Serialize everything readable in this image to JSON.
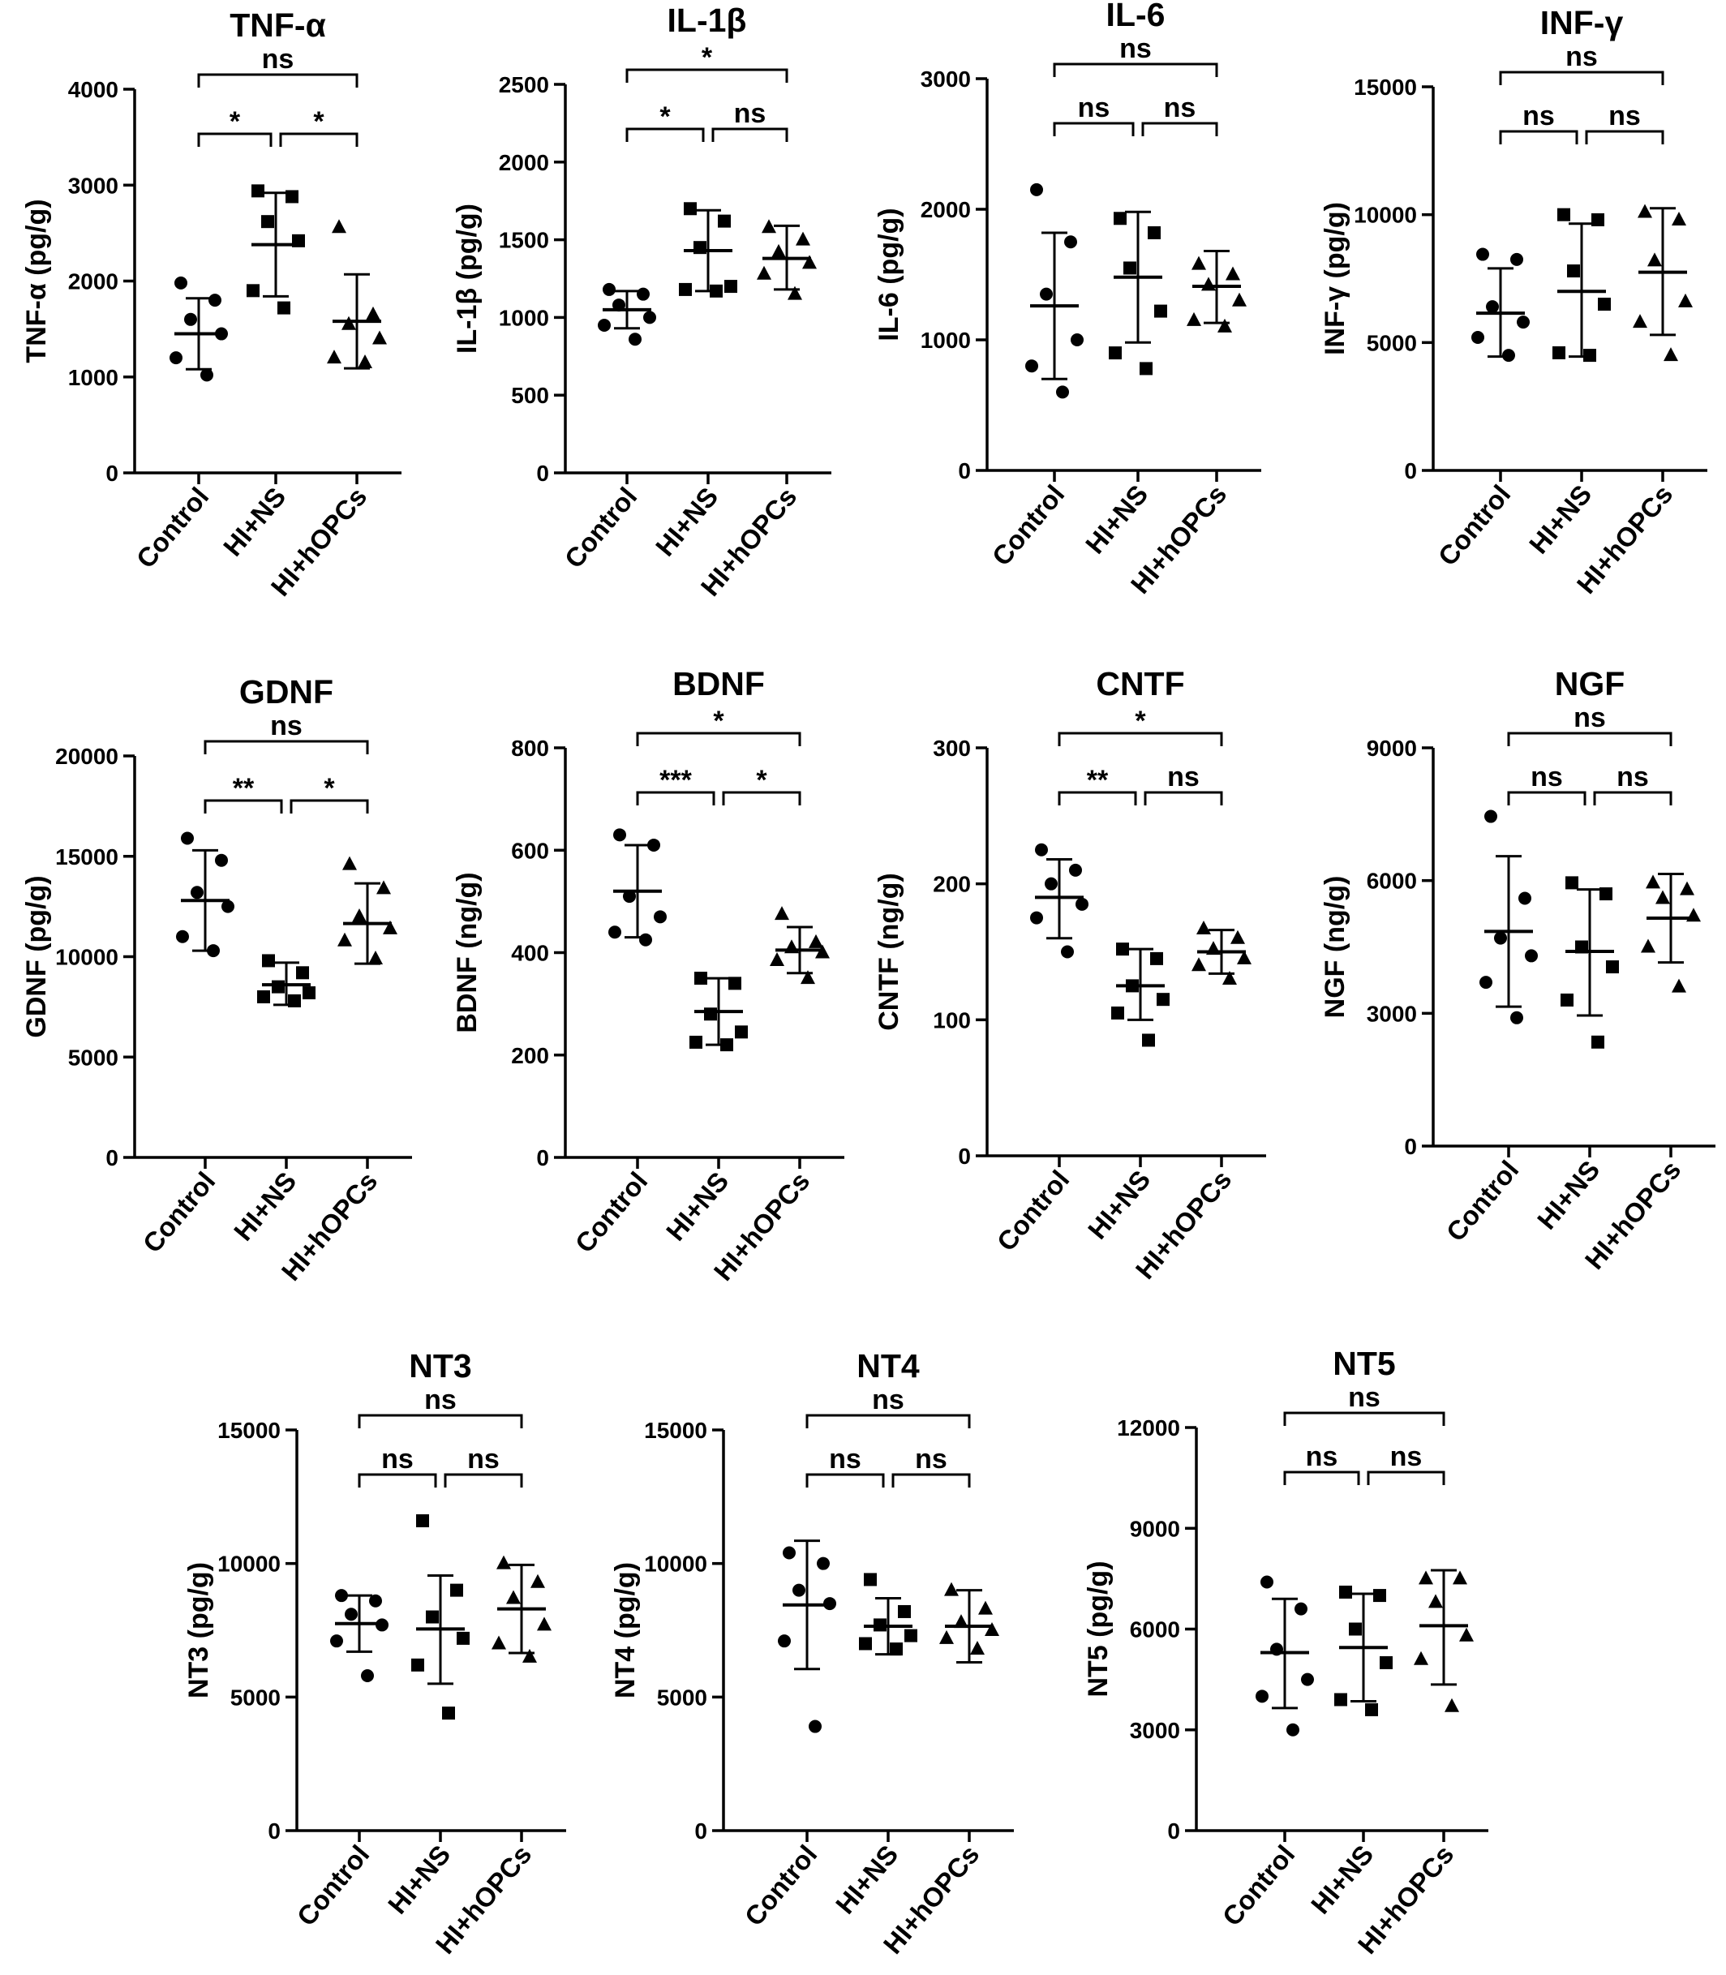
{
  "chart_data": [
    {
      "type": "scatter",
      "title": "TNF-α",
      "ylabel": "TNF-α (pg/g)",
      "categories": [
        "Control",
        "HI+NS",
        "HI+hOPCs"
      ],
      "ylim": [
        0,
        4000
      ],
      "yticks": [
        0,
        1000,
        2000,
        3000,
        4000
      ],
      "marker_symbols": [
        "circle",
        "square",
        "triangle"
      ],
      "series": [
        {
          "points": [
            1980,
            1800,
            1600,
            1450,
            1200,
            1020
          ],
          "mean": 1450,
          "sd": [
            1080,
            1820
          ]
        },
        {
          "points": [
            2940,
            2880,
            2620,
            2420,
            1900,
            1720
          ],
          "mean": 2380,
          "sd": [
            1840,
            2920
          ]
        },
        {
          "points": [
            2560,
            1650,
            1550,
            1400,
            1200,
            1150
          ],
          "mean": 1580,
          "sd": [
            1090,
            2070
          ]
        }
      ],
      "significance": [
        {
          "from": 0,
          "to": 1,
          "label": "*"
        },
        {
          "from": 1,
          "to": 2,
          "label": "*"
        },
        {
          "from": 0,
          "to": 2,
          "label": "ns"
        }
      ]
    },
    {
      "type": "scatter",
      "title": "IL-1β",
      "ylabel": "IL-1β (pg/g)",
      "categories": [
        "Control",
        "HI+NS",
        "HI+hOPCs"
      ],
      "ylim": [
        0,
        2500
      ],
      "yticks": [
        0,
        500,
        1000,
        1500,
        2000,
        2500
      ],
      "marker_symbols": [
        "circle",
        "square",
        "triangle"
      ],
      "series": [
        {
          "points": [
            1180,
            1150,
            1080,
            1000,
            950,
            860
          ],
          "mean": 1050,
          "sd": [
            930,
            1170
          ]
        },
        {
          "points": [
            1700,
            1620,
            1450,
            1200,
            1180,
            1170
          ],
          "mean": 1430,
          "sd": [
            1170,
            1690
          ]
        },
        {
          "points": [
            1580,
            1500,
            1420,
            1350,
            1280,
            1150
          ],
          "mean": 1380,
          "sd": [
            1180,
            1590
          ]
        }
      ],
      "significance": [
        {
          "from": 0,
          "to": 1,
          "label": "*"
        },
        {
          "from": 1,
          "to": 2,
          "label": "ns"
        },
        {
          "from": 0,
          "to": 2,
          "label": "*"
        }
      ]
    },
    {
      "type": "scatter",
      "title": "IL-6",
      "ylabel": "IL-6 (pg/g)",
      "categories": [
        "Control",
        "HI+NS",
        "HI+hOPCs"
      ],
      "ylim": [
        0,
        3000
      ],
      "yticks": [
        0,
        1000,
        2000,
        3000
      ],
      "marker_symbols": [
        "circle",
        "square",
        "triangle"
      ],
      "series": [
        {
          "points": [
            2150,
            1750,
            1350,
            1000,
            800,
            600
          ],
          "mean": 1260,
          "sd": [
            700,
            1820
          ]
        },
        {
          "points": [
            1930,
            1820,
            1550,
            1220,
            900,
            780
          ],
          "mean": 1480,
          "sd": [
            980,
            1980
          ]
        },
        {
          "points": [
            1580,
            1500,
            1420,
            1300,
            1150,
            1100
          ],
          "mean": 1410,
          "sd": [
            1130,
            1680
          ]
        }
      ],
      "significance": [
        {
          "from": 0,
          "to": 1,
          "label": "ns"
        },
        {
          "from": 1,
          "to": 2,
          "label": "ns"
        },
        {
          "from": 0,
          "to": 2,
          "label": "ns"
        }
      ]
    },
    {
      "type": "scatter",
      "title": "INF-γ",
      "ylabel": "INF-γ (pg/g)",
      "categories": [
        "Control",
        "HI+NS",
        "HI+hOPCs"
      ],
      "ylim": [
        0,
        15000
      ],
      "yticks": [
        0,
        5000,
        10000,
        15000
      ],
      "marker_symbols": [
        "circle",
        "square",
        "triangle"
      ],
      "series": [
        {
          "points": [
            8450,
            8250,
            6400,
            5800,
            5200,
            4500
          ],
          "mean": 6150,
          "sd": [
            4450,
            7900
          ]
        },
        {
          "points": [
            10000,
            9800,
            7800,
            6500,
            4600,
            4500
          ],
          "mean": 7000,
          "sd": [
            4450,
            9650
          ]
        },
        {
          "points": [
            10100,
            9800,
            8200,
            6600,
            5800,
            4500
          ],
          "mean": 7750,
          "sd": [
            5300,
            10250
          ]
        }
      ],
      "significance": [
        {
          "from": 0,
          "to": 1,
          "label": "ns"
        },
        {
          "from": 1,
          "to": 2,
          "label": "ns"
        },
        {
          "from": 0,
          "to": 2,
          "label": "ns"
        }
      ]
    },
    {
      "type": "scatter",
      "title": "GDNF",
      "ylabel": "GDNF (pg/g)",
      "categories": [
        "Control",
        "HI+NS",
        "HI+hOPCs"
      ],
      "ylim": [
        0,
        20000
      ],
      "yticks": [
        0,
        5000,
        10000,
        15000,
        20000
      ],
      "marker_symbols": [
        "circle",
        "square",
        "triangle"
      ],
      "series": [
        {
          "points": [
            15900,
            14800,
            13200,
            12500,
            11000,
            10300
          ],
          "mean": 12800,
          "sd": [
            10300,
            15300
          ]
        },
        {
          "points": [
            9800,
            9200,
            8500,
            8200,
            8000,
            7800
          ],
          "mean": 8600,
          "sd": [
            7600,
            9700
          ]
        },
        {
          "points": [
            14600,
            13400,
            12000,
            11400,
            10800,
            9900
          ],
          "mean": 11650,
          "sd": [
            9650,
            13650
          ]
        }
      ],
      "significance": [
        {
          "from": 0,
          "to": 1,
          "label": "**"
        },
        {
          "from": 1,
          "to": 2,
          "label": "*"
        },
        {
          "from": 0,
          "to": 2,
          "label": "ns"
        }
      ]
    },
    {
      "type": "scatter",
      "title": "BDNF",
      "ylabel": "BDNF (ng/g)",
      "categories": [
        "Control",
        "HI+NS",
        "HI+hOPCs"
      ],
      "ylim": [
        0,
        800
      ],
      "yticks": [
        0,
        200,
        400,
        600,
        800
      ],
      "marker_symbols": [
        "circle",
        "square",
        "triangle"
      ],
      "series": [
        {
          "points": [
            630,
            610,
            510,
            470,
            440,
            425
          ],
          "mean": 520,
          "sd": [
            430,
            610
          ]
        },
        {
          "points": [
            350,
            340,
            280,
            245,
            225,
            220
          ],
          "mean": 285,
          "sd": [
            220,
            350
          ]
        },
        {
          "points": [
            475,
            420,
            410,
            400,
            385,
            350
          ],
          "mean": 405,
          "sd": [
            360,
            450
          ]
        }
      ],
      "significance": [
        {
          "from": 0,
          "to": 1,
          "label": "***"
        },
        {
          "from": 1,
          "to": 2,
          "label": "*"
        },
        {
          "from": 0,
          "to": 2,
          "label": "*"
        }
      ]
    },
    {
      "type": "scatter",
      "title": "CNTF",
      "ylabel": "CNTF (ng/g)",
      "categories": [
        "Control",
        "HI+NS",
        "HI+hOPCs"
      ],
      "ylim": [
        0,
        300
      ],
      "yticks": [
        0,
        100,
        200,
        300
      ],
      "marker_symbols": [
        "circle",
        "square",
        "triangle"
      ],
      "series": [
        {
          "points": [
            225,
            210,
            200,
            185,
            175,
            150
          ],
          "mean": 190,
          "sd": [
            160,
            218
          ]
        },
        {
          "points": [
            152,
            145,
            125,
            115,
            105,
            85
          ],
          "mean": 125,
          "sd": [
            100,
            152
          ]
        },
        {
          "points": [
            167,
            160,
            152,
            145,
            140,
            130
          ],
          "mean": 150,
          "sd": [
            134,
            166
          ]
        }
      ],
      "significance": [
        {
          "from": 0,
          "to": 1,
          "label": "**"
        },
        {
          "from": 1,
          "to": 2,
          "label": "ns"
        },
        {
          "from": 0,
          "to": 2,
          "label": "*"
        }
      ]
    },
    {
      "type": "scatter",
      "title": "NGF",
      "ylabel": "NGF (ng/g)",
      "categories": [
        "Control",
        "HI+NS",
        "HI+hOPCs"
      ],
      "ylim": [
        0,
        9000
      ],
      "yticks": [
        0,
        3000,
        6000,
        9000
      ],
      "marker_symbols": [
        "circle",
        "square",
        "triangle"
      ],
      "series": [
        {
          "points": [
            7450,
            5600,
            4700,
            4300,
            3700,
            2900
          ],
          "mean": 4850,
          "sd": [
            3150,
            6550
          ]
        },
        {
          "points": [
            5950,
            5700,
            4500,
            4050,
            3300,
            2350
          ],
          "mean": 4400,
          "sd": [
            2950,
            5800
          ]
        },
        {
          "points": [
            5950,
            5800,
            5600,
            5200,
            4500,
            3600
          ],
          "mean": 5150,
          "sd": [
            4150,
            6150
          ]
        }
      ],
      "significance": [
        {
          "from": 0,
          "to": 1,
          "label": "ns"
        },
        {
          "from": 1,
          "to": 2,
          "label": "ns"
        },
        {
          "from": 0,
          "to": 2,
          "label": "ns"
        }
      ]
    },
    {
      "type": "scatter",
      "title": "NT3",
      "ylabel": "NT3 (pg/g)",
      "categories": [
        "Control",
        "HI+NS",
        "HI+hOPCs"
      ],
      "ylim": [
        0,
        15000
      ],
      "yticks": [
        0,
        5000,
        10000,
        15000
      ],
      "marker_symbols": [
        "circle",
        "square",
        "triangle"
      ],
      "series": [
        {
          "points": [
            8800,
            8600,
            8100,
            7700,
            7100,
            5800
          ],
          "mean": 7750,
          "sd": [
            6700,
            8800
          ]
        },
        {
          "points": [
            11600,
            9000,
            8000,
            7200,
            6200,
            4400
          ],
          "mean": 7550,
          "sd": [
            5500,
            9550
          ]
        },
        {
          "points": [
            10000,
            9300,
            8700,
            7700,
            7000,
            6500
          ],
          "mean": 8300,
          "sd": [
            6650,
            9950
          ]
        }
      ],
      "significance": [
        {
          "from": 0,
          "to": 1,
          "label": "ns"
        },
        {
          "from": 1,
          "to": 2,
          "label": "ns"
        },
        {
          "from": 0,
          "to": 2,
          "label": "ns"
        }
      ]
    },
    {
      "type": "scatter",
      "title": "NT4",
      "ylabel": "NT4 (pg/g)",
      "categories": [
        "Control",
        "HI+NS",
        "HI+hOPCs"
      ],
      "ylim": [
        0,
        15000
      ],
      "yticks": [
        0,
        5000,
        10000,
        15000
      ],
      "marker_symbols": [
        "circle",
        "square",
        "triangle"
      ],
      "series": [
        {
          "points": [
            10400,
            10000,
            9000,
            8500,
            7100,
            3900
          ],
          "mean": 8450,
          "sd": [
            6050,
            10850
          ]
        },
        {
          "points": [
            9400,
            8200,
            7700,
            7300,
            7000,
            6800
          ],
          "mean": 7650,
          "sd": [
            6600,
            8700
          ]
        },
        {
          "points": [
            9000,
            8300,
            7800,
            7500,
            7200,
            6800
          ],
          "mean": 7650,
          "sd": [
            6300,
            9000
          ]
        }
      ],
      "significance": [
        {
          "from": 0,
          "to": 1,
          "label": "ns"
        },
        {
          "from": 1,
          "to": 2,
          "label": "ns"
        },
        {
          "from": 0,
          "to": 2,
          "label": "ns"
        }
      ]
    },
    {
      "type": "scatter",
      "title": "NT5",
      "ylabel": "NT5 (pg/g)",
      "categories": [
        "Control",
        "HI+NS",
        "HI+hOPCs"
      ],
      "ylim": [
        0,
        12000
      ],
      "yticks": [
        0,
        3000,
        6000,
        9000,
        12000
      ],
      "marker_symbols": [
        "circle",
        "square",
        "triangle"
      ],
      "series": [
        {
          "points": [
            7400,
            6600,
            5400,
            4500,
            4000,
            3000
          ],
          "mean": 5300,
          "sd": [
            3650,
            6900
          ]
        },
        {
          "points": [
            7100,
            7000,
            6000,
            5000,
            3900,
            3600
          ],
          "mean": 5450,
          "sd": [
            3850,
            7050
          ]
        },
        {
          "points": [
            7500,
            7500,
            6800,
            5800,
            5100,
            3700
          ],
          "mean": 6100,
          "sd": [
            4350,
            7750
          ]
        }
      ],
      "significance": [
        {
          "from": 0,
          "to": 1,
          "label": "ns"
        },
        {
          "from": 1,
          "to": 2,
          "label": "ns"
        },
        {
          "from": 0,
          "to": 2,
          "label": "ns"
        }
      ]
    }
  ]
}
